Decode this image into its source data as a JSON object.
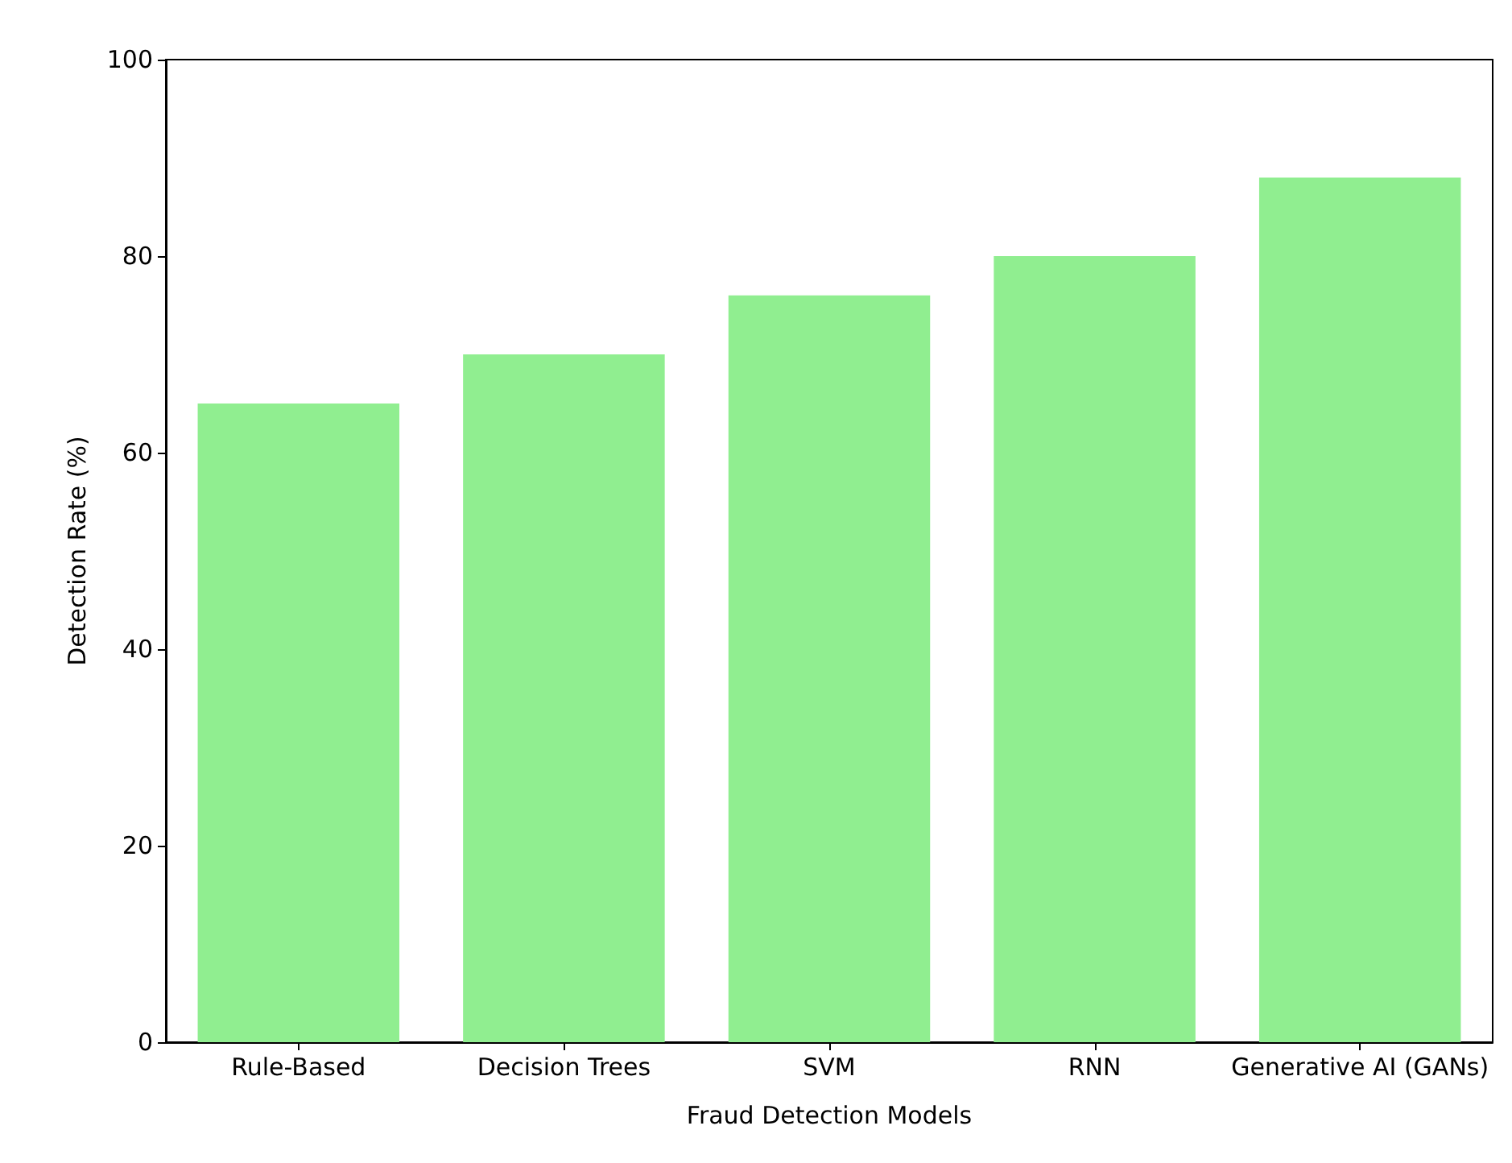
{
  "chart_data": {
    "type": "bar",
    "xlabel": "Fraud Detection Models",
    "ylabel": "Detection Rate (%)",
    "categories": [
      "Rule-Based",
      "Decision Trees",
      "SVM",
      "RNN",
      "Generative AI (GANs)"
    ],
    "values": [
      65,
      70,
      76,
      80,
      88
    ],
    "color": "#90ee90",
    "ylim": [
      0,
      100
    ],
    "yticks": [
      0,
      20,
      40,
      60,
      80,
      100
    ],
    "grid": false
  }
}
